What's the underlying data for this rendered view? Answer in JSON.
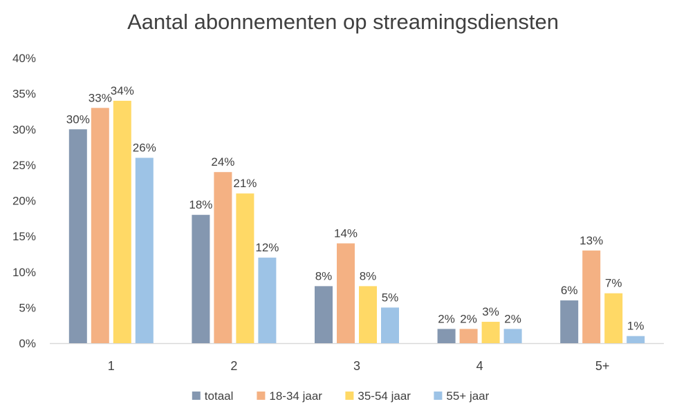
{
  "chart_data": {
    "type": "bar",
    "title": "Aantal abonnementen op streamingsdiensten",
    "xlabel": "",
    "ylabel": "",
    "categories": [
      "1",
      "2",
      "3",
      "4",
      "5+"
    ],
    "series": [
      {
        "name": "totaal",
        "color": "#8497b0",
        "values": [
          30,
          18,
          8,
          2,
          6
        ],
        "labels": [
          "30%",
          "18%",
          "8%",
          "2%",
          "6%"
        ]
      },
      {
        "name": "18-34 jaar",
        "color": "#f4b183",
        "values": [
          33,
          24,
          14,
          2,
          13
        ],
        "labels": [
          "33%",
          "24%",
          "14%",
          "2%",
          "13%"
        ]
      },
      {
        "name": "35-54 jaar",
        "color": "#ffd966",
        "values": [
          34,
          21,
          8,
          3,
          7
        ],
        "labels": [
          "34%",
          "21%",
          "8%",
          "3%",
          "7%"
        ]
      },
      {
        "name": "55+ jaar",
        "color": "#9dc3e6",
        "values": [
          26,
          12,
          5,
          2,
          1
        ],
        "labels": [
          "26%",
          "12%",
          "5%",
          "2%",
          "1%"
        ]
      }
    ],
    "ylim": [
      0,
      40
    ],
    "yticks": [
      "0%",
      "5%",
      "10%",
      "15%",
      "20%",
      "25%",
      "30%",
      "35%",
      "40%"
    ],
    "grid": false,
    "legend_position": "bottom",
    "axis_color": "#d9d9d9"
  }
}
